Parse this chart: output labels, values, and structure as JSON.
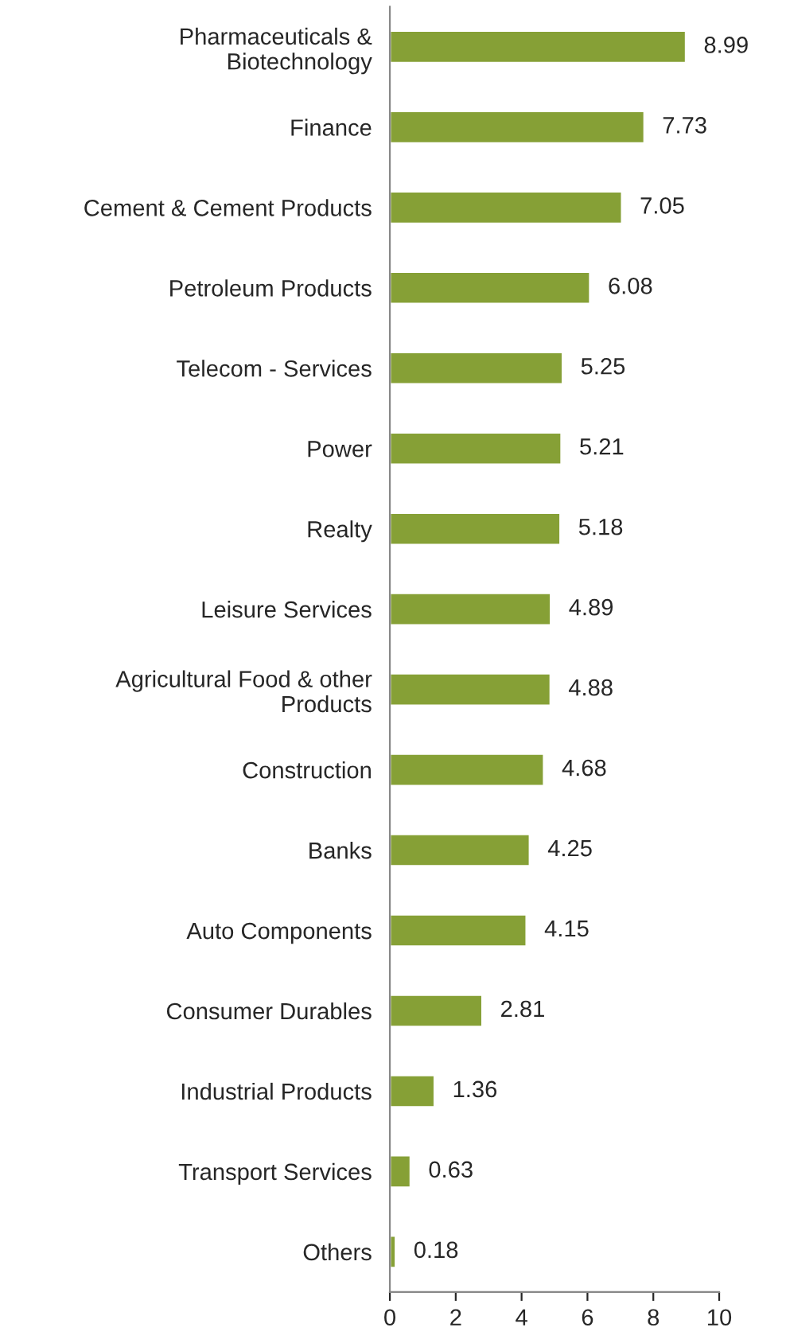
{
  "chart_data": {
    "type": "bar",
    "orientation": "horizontal",
    "categories": [
      "Pharmaceuticals &\nBiotechnology",
      "Finance",
      "Cement & Cement Products",
      "Petroleum Products",
      "Telecom - Services",
      "Power",
      "Realty",
      "Leisure Services",
      "Agricultural Food & other\nProducts",
      "Construction",
      "Banks",
      "Auto Components",
      "Consumer Durables",
      "Industrial Products",
      "Transport Services",
      "Others"
    ],
    "values": [
      8.99,
      7.73,
      7.05,
      6.08,
      5.25,
      5.21,
      5.18,
      4.89,
      4.88,
      4.68,
      4.25,
      4.15,
      2.81,
      1.36,
      0.63,
      0.18
    ],
    "color": "#86a036",
    "xlim": [
      0,
      10
    ],
    "xticks": [
      0,
      2,
      4,
      6,
      8,
      10
    ],
    "data_labels": true,
    "grid": false,
    "legend": false
  }
}
